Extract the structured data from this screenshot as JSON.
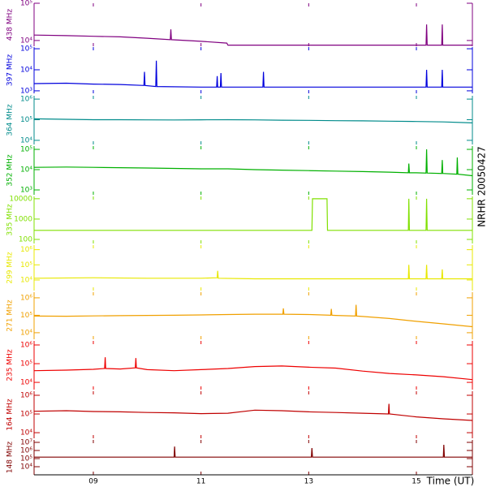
{
  "side_label": "NRHR 20050427",
  "time_axis": {
    "xlim": [
      7.9,
      16.04
    ],
    "xlabel": "Time (UT)",
    "xticks": [
      {
        "value": 9,
        "label": "09"
      },
      {
        "value": 11,
        "label": "11"
      },
      {
        "value": 13,
        "label": "13"
      },
      {
        "value": 15,
        "label": "15"
      }
    ]
  },
  "chart_data": [
    {
      "type": "line",
      "ylabel": "438 MHz",
      "color": "#800080",
      "log": true,
      "ylim": [
        7000,
        100000
      ],
      "yticks": [
        {
          "value": 10000,
          "label": "10⁴"
        },
        {
          "value": 100000,
          "label": "10⁵"
        }
      ],
      "x": [
        7.9,
        8.5,
        9,
        9.5,
        10,
        10.43,
        10.44,
        10.45,
        11,
        11.48,
        11.5,
        12,
        13,
        14,
        15,
        15.18,
        15.19,
        15.2,
        15.47,
        15.48,
        15.49,
        16.04
      ],
      "values": [
        14000,
        13500,
        13000,
        12500,
        11500,
        10500,
        20000,
        10500,
        9500,
        8500,
        7500,
        7500,
        7500,
        7500,
        7500,
        7500,
        27000,
        7500,
        7500,
        27000,
        7500,
        7500
      ]
    },
    {
      "type": "line",
      "ylabel": "397 MHz",
      "color": "#0000dd",
      "log": true,
      "ylim": [
        760,
        120000
      ],
      "yticks": [
        {
          "value": 1000,
          "label": "10³"
        },
        {
          "value": 10000,
          "label": "10⁴"
        },
        {
          "value": 100000,
          "label": "10⁵"
        }
      ],
      "x": [
        7.9,
        8.5,
        9,
        9.5,
        9.94,
        9.95,
        9.96,
        10.16,
        10.17,
        10.18,
        11,
        11.29,
        11.3,
        11.31,
        11.36,
        11.37,
        11.38,
        12.15,
        12.16,
        12.17,
        13,
        14,
        15.18,
        15.19,
        15.2,
        15.47,
        15.48,
        15.49,
        16.04
      ],
      "values": [
        2200,
        2300,
        2100,
        2000,
        1800,
        8000,
        1800,
        1600,
        27000,
        1600,
        1500,
        1500,
        5000,
        1500,
        1500,
        7000,
        1500,
        1500,
        8000,
        1500,
        1500,
        1500,
        1500,
        10000,
        1500,
        1500,
        10000,
        1500,
        1500
      ]
    },
    {
      "type": "line",
      "ylabel": "364 MHz",
      "color": "#008b8b",
      "log": true,
      "ylim": [
        6300,
        1450000
      ],
      "yticks": [
        {
          "value": 10000,
          "label": "10⁴"
        },
        {
          "value": 100000,
          "label": "10⁵"
        },
        {
          "value": 1000000,
          "label": "10⁶"
        }
      ],
      "x": [
        7.9,
        8.5,
        9,
        9.5,
        10,
        10.5,
        11,
        11.5,
        12,
        12.5,
        13,
        13.5,
        14,
        14.5,
        15,
        15.5,
        16.04
      ],
      "values": [
        110000,
        105000,
        100000,
        100000,
        98000,
        97000,
        99000,
        100000,
        98000,
        95000,
        93000,
        90000,
        88000,
        85000,
        82000,
        78000,
        70000
      ]
    },
    {
      "type": "line",
      "ylabel": "352 MHz",
      "color": "#00b000",
      "log": true,
      "ylim": [
        575,
        145000
      ],
      "yticks": [
        {
          "value": 1000,
          "label": "10³"
        },
        {
          "value": 10000,
          "label": "10⁴"
        },
        {
          "value": 100000,
          "label": "10⁵"
        }
      ],
      "x": [
        7.9,
        8.5,
        9,
        9.5,
        10,
        10.5,
        11,
        11.5,
        12,
        12.5,
        13,
        13.5,
        14,
        14.5,
        14.85,
        14.86,
        14.87,
        15,
        15.18,
        15.19,
        15.2,
        15.47,
        15.48,
        15.49,
        15.75,
        15.76,
        15.77,
        16.04
      ],
      "values": [
        13000,
        13500,
        13000,
        12500,
        12000,
        11500,
        11000,
        11000,
        10000,
        9500,
        9000,
        8500,
        8000,
        7500,
        7000,
        20000,
        7000,
        7000,
        6800,
        100000,
        6800,
        6500,
        30000,
        6500,
        6000,
        40000,
        6000,
        5000
      ]
    },
    {
      "type": "line",
      "ylabel": "335 MHz",
      "color": "#80e000",
      "log": true,
      "ylim": [
        63,
        13000
      ],
      "yticks": [
        100,
        1000,
        10000
      ],
      "x": [
        7.9,
        10,
        13.06,
        13.07,
        13.34,
        13.35,
        14.85,
        14.86,
        14.87,
        15.18,
        15.19,
        15.2,
        16.04
      ],
      "values": [
        280,
        280,
        280,
        10000,
        10000,
        280,
        280,
        10000,
        280,
        280,
        10000,
        280,
        280
      ]
    },
    {
      "type": "line",
      "ylabel": "299 MHz",
      "color": "#e8e800",
      "log": true,
      "ylim": [
        2000,
        2000000
      ],
      "yticks": [
        {
          "value": 10000,
          "label": "10⁴"
        },
        {
          "value": 100000,
          "label": "10⁵"
        },
        {
          "value": 1000000,
          "label": "10⁶"
        }
      ],
      "x": [
        7.9,
        9,
        10,
        11,
        11.3,
        11.31,
        11.32,
        12,
        13,
        14,
        14.85,
        14.86,
        14.87,
        15.18,
        15.19,
        15.2,
        15.47,
        15.48,
        15.49,
        16.04
      ],
      "values": [
        13000,
        14000,
        13000,
        13000,
        14000,
        40000,
        13000,
        12000,
        12000,
        12000,
        12000,
        100000,
        12000,
        12000,
        100000,
        12000,
        12000,
        50000,
        12000,
        12000
      ]
    },
    {
      "type": "line",
      "ylabel": "271 MHz",
      "color": "#f0a000",
      "log": true,
      "ylim": [
        4200,
        2100000
      ],
      "yticks": [
        {
          "value": 10000,
          "label": "10⁴"
        },
        {
          "value": 100000,
          "label": "10⁵"
        },
        {
          "value": 1000000,
          "label": "10⁶"
        }
      ],
      "x": [
        7.9,
        8.5,
        9,
        9.5,
        10,
        10.5,
        11,
        11.5,
        12,
        12.52,
        12.53,
        12.54,
        13,
        13.41,
        13.42,
        13.43,
        13.5,
        13.87,
        13.88,
        13.89,
        14,
        14.5,
        15,
        15.5,
        16.04
      ],
      "values": [
        90000,
        88000,
        92000,
        95000,
        98000,
        100000,
        105000,
        110000,
        115000,
        115000,
        250000,
        115000,
        110000,
        100000,
        230000,
        100000,
        98000,
        90000,
        400000,
        90000,
        85000,
        65000,
        45000,
        32000,
        22000
      ]
    },
    {
      "type": "line",
      "ylabel": "235 MHz",
      "color": "#ee0000",
      "log": true,
      "ylim": [
        4100,
        1650000
      ],
      "yticks": [
        {
          "value": 10000,
          "label": "10⁴"
        },
        {
          "value": 100000,
          "label": "10⁵"
        },
        {
          "value": 1000000,
          "label": "10⁶"
        }
      ],
      "x": [
        7.9,
        8.5,
        9,
        9.21,
        9.22,
        9.23,
        9.5,
        9.78,
        9.79,
        9.8,
        10,
        10.5,
        11,
        11.5,
        12,
        12.5,
        13,
        13.5,
        14,
        14.5,
        15,
        15.5,
        16.04
      ],
      "values": [
        42000,
        45000,
        50000,
        55000,
        220000,
        55000,
        52000,
        60000,
        200000,
        60000,
        48000,
        42000,
        48000,
        55000,
        70000,
        75000,
        65000,
        58000,
        40000,
        30000,
        25000,
        20000,
        14000
      ]
    },
    {
      "type": "line",
      "ylabel": "164 MHz",
      "color": "#c00000",
      "log": true,
      "ylim": [
        5000,
        1650000
      ],
      "yticks": [
        {
          "value": 10000,
          "label": "10⁴"
        },
        {
          "value": 100000,
          "label": "10⁵"
        },
        {
          "value": 1000000,
          "label": "10⁶"
        }
      ],
      "x": [
        7.9,
        8.5,
        9,
        9.5,
        10,
        10.5,
        11,
        11.5,
        12,
        12.5,
        13,
        13.5,
        14,
        14.48,
        14.49,
        14.5,
        15,
        15.5,
        16.04
      ],
      "values": [
        140000,
        150000,
        135000,
        130000,
        120000,
        115000,
        105000,
        110000,
        160000,
        150000,
        130000,
        120000,
        110000,
        100000,
        350000,
        100000,
        70000,
        55000,
        45000
      ]
    },
    {
      "type": "line",
      "ylabel": "148 MHz",
      "color": "#800000",
      "log": true,
      "ylim": [
        1000,
        20000000
      ],
      "yticks": [
        {
          "value": 10000,
          "label": "10⁴"
        },
        {
          "value": 100000,
          "label": "10⁵"
        },
        {
          "value": 1000000,
          "label": "10⁶"
        },
        {
          "value": 10000000,
          "label": "10⁷"
        }
      ],
      "x": [
        7.9,
        9,
        10,
        10.5,
        10.51,
        10.52,
        11,
        12,
        13,
        13.05,
        13.06,
        13.07,
        14,
        15,
        15.5,
        15.51,
        15.52,
        16.04
      ],
      "values": [
        150000,
        150000,
        150000,
        150000,
        3000000,
        150000,
        150000,
        150000,
        150000,
        150000,
        2000000,
        150000,
        150000,
        150000,
        150000,
        5000000,
        150000,
        150000
      ]
    }
  ]
}
